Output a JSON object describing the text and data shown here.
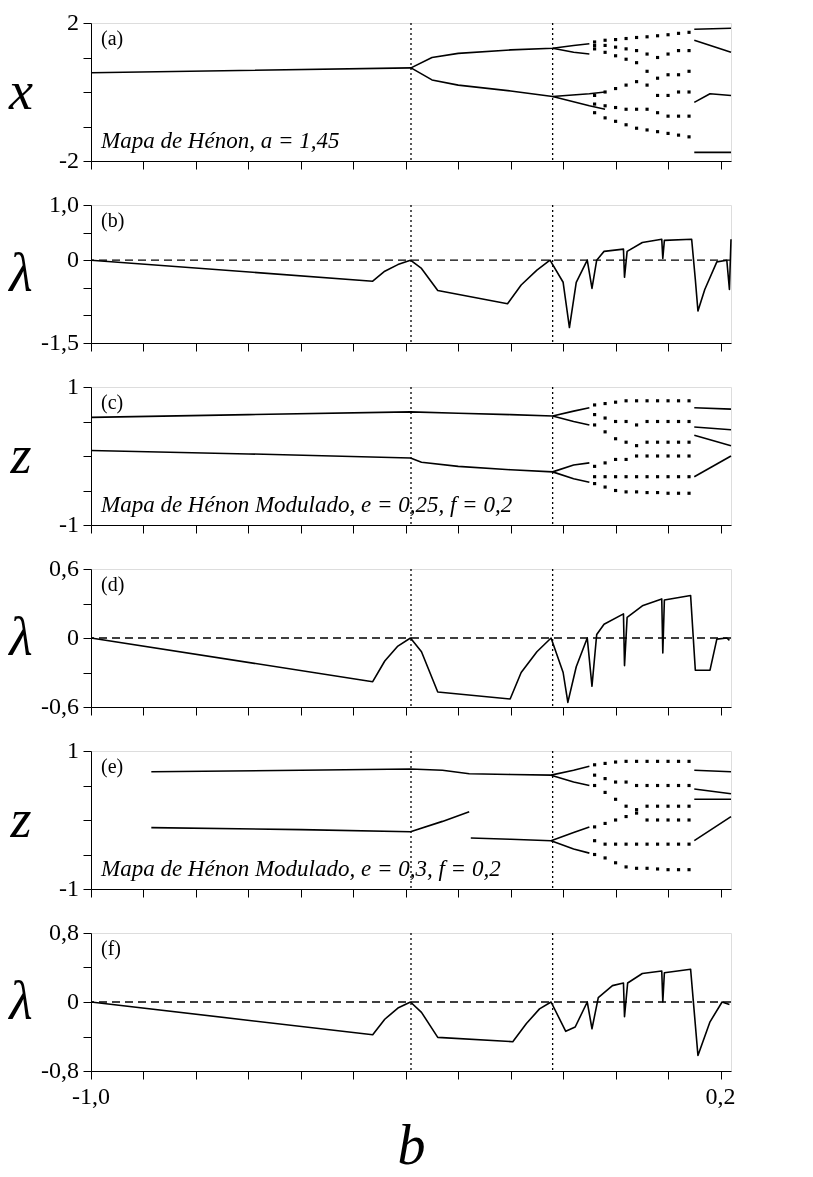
{
  "chart_data": [
    {
      "type": "line",
      "ylabel": "x",
      "xlim": [
        -1.0,
        0.22
      ],
      "ylim": [
        -2,
        2
      ],
      "tick_labels": "y",
      "grid": false,
      "xticks": [
        {
          "value": -1.0,
          "label": null
        },
        {
          "value": -0.9,
          "label": null
        },
        {
          "value": -0.8,
          "label": null
        },
        {
          "value": -0.7,
          "label": null
        },
        {
          "value": -0.6,
          "label": null
        },
        {
          "value": -0.5,
          "label": null
        },
        {
          "value": -0.4,
          "label": null
        },
        {
          "value": -0.3,
          "label": null
        },
        {
          "value": -0.2,
          "label": null
        },
        {
          "value": -0.1,
          "label": null
        },
        {
          "value": 0.0,
          "label": null
        },
        {
          "value": 0.1,
          "label": null
        },
        {
          "value": 0.2,
          "label": null
        }
      ],
      "yticks": [
        -2,
        {
          "value": -1,
          "label": null
        },
        {
          "value": 0,
          "label": null
        },
        {
          "value": 1,
          "label": null
        },
        2
      ],
      "annotations": [
        "(a)",
        "Mapa de Hénon, a = 1,45"
      ],
      "ref_lines": [
        {
          "axis": "x",
          "value": -0.39,
          "line_style": "dotted"
        },
        {
          "axis": "x",
          "value": -0.12,
          "line_style": "dotted"
        }
      ],
      "series": [
        {
          "type": "line",
          "color": "#000000",
          "x": [
            -1.0,
            -0.39,
            -0.35,
            -0.3,
            -0.2,
            -0.12,
            -0.08,
            -0.05
          ],
          "values": [
            0.56,
            0.7,
            1.0,
            1.12,
            1.22,
            1.27,
            1.35,
            1.4
          ]
        },
        {
          "type": "line",
          "color": "#000000",
          "x": [
            -0.12,
            -0.08,
            -0.05
          ],
          "values": [
            1.27,
            1.15,
            1.1
          ]
        },
        {
          "type": "line",
          "color": "#000000",
          "x": [
            -0.39,
            -0.35,
            -0.3,
            -0.2,
            -0.12,
            -0.05,
            -0.02
          ],
          "values": [
            0.7,
            0.35,
            0.2,
            0.03,
            -0.13,
            -0.05,
            0.0
          ]
        },
        {
          "type": "line",
          "color": "#000000",
          "x": [
            -0.12,
            -0.05,
            -0.02
          ],
          "values": [
            -0.13,
            -0.4,
            -0.5
          ]
        },
        {
          "type": "line",
          "color": "#000000",
          "x": [
            0.15,
            0.22
          ],
          "values": [
            1.82,
            1.85
          ]
        },
        {
          "type": "line",
          "color": "#000000",
          "x": [
            0.15,
            0.22
          ],
          "values": [
            1.5,
            1.15
          ]
        },
        {
          "type": "line",
          "color": "#000000",
          "x": [
            0.15,
            0.18,
            0.22
          ],
          "values": [
            -0.3,
            -0.05,
            -0.1
          ]
        },
        {
          "type": "line",
          "color": "#000000",
          "x": [
            0.15,
            0.22
          ],
          "values": [
            -1.75,
            -1.75
          ]
        },
        {
          "type": "scatter",
          "color": "#000000",
          "x": [
            -0.04,
            -0.04,
            -0.04,
            -0.04,
            -0.04,
            -0.04,
            -0.02,
            -0.02,
            -0.02,
            -0.02,
            -0.02,
            -0.02,
            0.0,
            0.0,
            0.0,
            0.0,
            0.0,
            0.0,
            0.02,
            0.02,
            0.02,
            0.02,
            0.02,
            0.02,
            0.04,
            0.04,
            0.04,
            0.04,
            0.04,
            0.04,
            0.06,
            0.06,
            0.06,
            0.06,
            0.06,
            0.06,
            0.08,
            0.08,
            0.08,
            0.08,
            0.08,
            0.08,
            0.1,
            0.1,
            0.1,
            0.1,
            0.1,
            0.1,
            0.12,
            0.12,
            0.12,
            0.12,
            0.12,
            0.12,
            0.14,
            0.14,
            0.14,
            0.14,
            0.14,
            0.14
          ],
          "values": [
            1.45,
            1.35,
            1.25,
            -0.1,
            -0.35,
            -0.6,
            1.5,
            1.35,
            1.15,
            0.0,
            -0.4,
            -0.75,
            1.52,
            1.3,
            1.05,
            0.1,
            -0.45,
            -0.85,
            1.55,
            1.25,
            0.95,
            0.2,
            -0.5,
            -0.95,
            1.58,
            1.2,
            0.85,
            0.3,
            -0.5,
            -1.05,
            1.6,
            1.1,
            0.6,
            0.2,
            -0.5,
            -1.1,
            1.63,
            1.0,
            0.4,
            -0.1,
            -0.6,
            -1.15,
            1.66,
            1.1,
            0.5,
            -0.1,
            -0.7,
            -1.2,
            1.7,
            1.2,
            0.5,
            0.0,
            -0.7,
            -1.25,
            1.73,
            1.2,
            0.6,
            0.0,
            -0.7,
            -1.3
          ]
        }
      ]
    },
    {
      "type": "line",
      "ylabel": "λ",
      "xlim": [
        -1.0,
        0.22
      ],
      "ylim": [
        -1.5,
        1.0
      ],
      "tick_labels": "y",
      "grid": false,
      "xticks": [
        {
          "value": -1.0,
          "label": null
        },
        {
          "value": -0.9,
          "label": null
        },
        {
          "value": -0.8,
          "label": null
        },
        {
          "value": -0.7,
          "label": null
        },
        {
          "value": -0.6,
          "label": null
        },
        {
          "value": -0.5,
          "label": null
        },
        {
          "value": -0.4,
          "label": null
        },
        {
          "value": -0.3,
          "label": null
        },
        {
          "value": -0.2,
          "label": null
        },
        {
          "value": -0.1,
          "label": null
        },
        {
          "value": 0.0,
          "label": null
        },
        {
          "value": 0.1,
          "label": null
        },
        {
          "value": 0.2,
          "label": null
        }
      ],
      "yticks": [
        {
          "value": -1.5,
          "label": "-1,5"
        },
        {
          "value": -1.0,
          "label": null
        },
        {
          "value": -0.5,
          "label": null
        },
        0,
        {
          "value": 0.5,
          "label": null
        },
        {
          "value": 1.0,
          "label": "1,0"
        }
      ],
      "annotations": [
        "(b)"
      ],
      "ref_lines": [
        {
          "axis": "x",
          "value": -0.39,
          "line_style": "dotted"
        },
        {
          "axis": "x",
          "value": -0.12,
          "line_style": "dotted"
        },
        {
          "axis": "y",
          "value": 0,
          "line_style": "dashed"
        }
      ],
      "series": [
        {
          "type": "line",
          "color": "#000000",
          "x": [
            -1.0,
            -0.463,
            -0.44,
            -0.415,
            -0.391,
            -0.37,
            -0.339,
            -0.206,
            -0.18,
            -0.15,
            -0.125,
            -0.1,
            -0.088,
            -0.075,
            -0.054,
            -0.045,
            -0.036,
            -0.022,
            0.015,
            0.017,
            0.022,
            0.051,
            0.088,
            0.09,
            0.093,
            0.145,
            0.152,
            0.157,
            0.17,
            0.193,
            0.212,
            0.217,
            0.22
          ],
          "values": [
            0.0,
            -0.38,
            -0.2,
            -0.08,
            0.0,
            -0.15,
            -0.55,
            -0.79,
            -0.45,
            -0.18,
            0.0,
            -0.4,
            -1.22,
            -0.4,
            0.0,
            -0.51,
            0.0,
            0.16,
            0.2,
            -0.31,
            0.16,
            0.32,
            0.38,
            0.03,
            0.36,
            0.38,
            -0.35,
            -0.92,
            -0.53,
            -0.03,
            0.0,
            -0.53,
            0.38
          ]
        }
      ]
    },
    {
      "type": "line",
      "ylabel": "z",
      "xlim": [
        -1.0,
        0.22
      ],
      "ylim": [
        -1,
        1
      ],
      "tick_labels": "y",
      "grid": false,
      "xticks": [
        {
          "value": -1.0,
          "label": null
        },
        {
          "value": -0.9,
          "label": null
        },
        {
          "value": -0.8,
          "label": null
        },
        {
          "value": -0.7,
          "label": null
        },
        {
          "value": -0.6,
          "label": null
        },
        {
          "value": -0.5,
          "label": null
        },
        {
          "value": -0.4,
          "label": null
        },
        {
          "value": -0.3,
          "label": null
        },
        {
          "value": -0.2,
          "label": null
        },
        {
          "value": -0.1,
          "label": null
        },
        {
          "value": 0.0,
          "label": null
        },
        {
          "value": 0.1,
          "label": null
        },
        {
          "value": 0.2,
          "label": null
        }
      ],
      "yticks": [
        -1,
        {
          "value": -0.5,
          "label": null
        },
        {
          "value": 0,
          "label": null
        },
        {
          "value": 0.5,
          "label": null
        },
        1
      ],
      "annotations": [
        "(c)",
        "Mapa de Hénon Modulado, e = 0,25, f = 0,2"
      ],
      "ref_lines": [
        {
          "axis": "x",
          "value": -0.39,
          "line_style": "dotted"
        },
        {
          "axis": "x",
          "value": -0.12,
          "line_style": "dotted"
        }
      ],
      "series": [
        {
          "type": "line",
          "color": "#000000",
          "x": [
            -1.0,
            -0.7,
            -0.391,
            -0.3,
            -0.2,
            -0.12,
            -0.08,
            -0.05
          ],
          "values": [
            0.56,
            0.6,
            0.64,
            0.62,
            0.6,
            0.58,
            0.65,
            0.7
          ]
        },
        {
          "type": "line",
          "color": "#000000",
          "x": [
            -0.12,
            -0.08,
            -0.05
          ],
          "values": [
            0.58,
            0.5,
            0.45
          ]
        },
        {
          "type": "line",
          "color": "#000000",
          "x": [
            -1.0,
            -0.7,
            -0.391,
            -0.37,
            -0.3,
            -0.2,
            -0.12,
            -0.08,
            -0.05
          ],
          "values": [
            0.08,
            0.03,
            -0.03,
            -0.09,
            -0.15,
            -0.2,
            -0.23,
            -0.13,
            -0.1
          ]
        },
        {
          "type": "line",
          "color": "#000000",
          "x": [
            -0.12,
            -0.08,
            -0.05
          ],
          "values": [
            -0.23,
            -0.33,
            -0.38
          ]
        },
        {
          "type": "line",
          "color": "#000000",
          "x": [
            0.15,
            0.22
          ],
          "values": [
            0.7,
            0.68
          ]
        },
        {
          "type": "line",
          "color": "#000000",
          "x": [
            0.15,
            0.22
          ],
          "values": [
            0.42,
            0.38
          ]
        },
        {
          "type": "line",
          "color": "#000000",
          "x": [
            0.15,
            0.22
          ],
          "values": [
            0.3,
            0.15
          ]
        },
        {
          "type": "line",
          "color": "#000000",
          "x": [
            0.15,
            0.22
          ],
          "values": [
            -0.3,
            0.0
          ]
        },
        {
          "type": "scatter",
          "color": "#000000",
          "x": [
            -0.04,
            -0.04,
            -0.04,
            -0.04,
            -0.04,
            -0.04,
            -0.02,
            -0.02,
            -0.02,
            -0.02,
            -0.02,
            -0.02,
            0.0,
            0.0,
            0.0,
            0.0,
            0.0,
            0.0,
            0.02,
            0.02,
            0.02,
            0.02,
            0.02,
            0.02,
            0.04,
            0.04,
            0.04,
            0.04,
            0.04,
            0.04,
            0.06,
            0.06,
            0.06,
            0.06,
            0.06,
            0.06,
            0.08,
            0.08,
            0.08,
            0.08,
            0.08,
            0.08,
            0.1,
            0.1,
            0.1,
            0.1,
            0.1,
            0.1,
            0.12,
            0.12,
            0.12,
            0.12,
            0.12,
            0.12,
            0.14,
            0.14,
            0.14,
            0.14,
            0.14,
            0.14
          ],
          "values": [
            0.74,
            0.6,
            0.45,
            -0.15,
            -0.3,
            -0.4,
            0.76,
            0.55,
            0.35,
            -0.1,
            -0.3,
            -0.45,
            0.78,
            0.5,
            0.25,
            -0.05,
            -0.3,
            -0.5,
            0.8,
            0.5,
            0.2,
            -0.05,
            -0.3,
            -0.52,
            0.8,
            0.45,
            0.15,
            0.0,
            -0.3,
            -0.52,
            0.8,
            0.5,
            0.2,
            0.0,
            -0.3,
            -0.53,
            0.8,
            0.5,
            0.2,
            0.0,
            -0.3,
            -0.53,
            0.8,
            0.5,
            0.2,
            0.0,
            -0.3,
            -0.54,
            0.8,
            0.5,
            0.2,
            0.0,
            -0.3,
            -0.54,
            0.8,
            0.5,
            0.2,
            0.0,
            -0.3,
            -0.54
          ]
        }
      ]
    },
    {
      "type": "line",
      "ylabel": "λ",
      "xlim": [
        -1.0,
        0.22
      ],
      "ylim": [
        -0.6,
        0.6
      ],
      "tick_labels": "y",
      "grid": false,
      "xticks": [
        {
          "value": -1.0,
          "label": null
        },
        {
          "value": -0.9,
          "label": null
        },
        {
          "value": -0.8,
          "label": null
        },
        {
          "value": -0.7,
          "label": null
        },
        {
          "value": -0.6,
          "label": null
        },
        {
          "value": -0.5,
          "label": null
        },
        {
          "value": -0.4,
          "label": null
        },
        {
          "value": -0.3,
          "label": null
        },
        {
          "value": -0.2,
          "label": null
        },
        {
          "value": -0.1,
          "label": null
        },
        {
          "value": 0.0,
          "label": null
        },
        {
          "value": 0.1,
          "label": null
        },
        {
          "value": 0.2,
          "label": null
        }
      ],
      "yticks": [
        {
          "value": -0.6,
          "label": "-0,6"
        },
        {
          "value": -0.3,
          "label": null
        },
        0,
        {
          "value": 0.3,
          "label": null
        },
        {
          "value": 0.6,
          "label": "0,6"
        }
      ],
      "annotations": [
        "(d)"
      ],
      "ref_lines": [
        {
          "axis": "x",
          "value": -0.39,
          "line_style": "dotted"
        },
        {
          "axis": "x",
          "value": -0.12,
          "line_style": "dotted"
        },
        {
          "axis": "y",
          "value": 0,
          "line_style": "dashed"
        }
      ],
      "series": [
        {
          "type": "line",
          "color": "#000000",
          "x": [
            -1.0,
            -0.463,
            -0.44,
            -0.415,
            -0.391,
            -0.37,
            -0.339,
            -0.201,
            -0.18,
            -0.15,
            -0.123,
            -0.1,
            -0.091,
            -0.075,
            -0.054,
            -0.045,
            -0.036,
            -0.022,
            0.015,
            0.017,
            0.022,
            0.051,
            0.088,
            0.09,
            0.093,
            0.143,
            0.152,
            0.18,
            0.193,
            0.212,
            0.217
          ],
          "values": [
            0.0,
            -0.38,
            -0.2,
            -0.07,
            0.0,
            -0.12,
            -0.47,
            -0.53,
            -0.3,
            -0.12,
            0.0,
            -0.3,
            -0.56,
            -0.25,
            0.0,
            -0.42,
            0.03,
            0.12,
            0.21,
            -0.24,
            0.18,
            0.28,
            0.34,
            -0.13,
            0.33,
            0.37,
            -0.28,
            -0.28,
            -0.01,
            0.0,
            -0.02
          ]
        }
      ]
    },
    {
      "type": "line",
      "ylabel": "z",
      "xlim": [
        -1.0,
        0.22
      ],
      "ylim": [
        -1,
        1
      ],
      "tick_labels": "y",
      "grid": false,
      "xticks": [
        {
          "value": -1.0,
          "label": null
        },
        {
          "value": -0.9,
          "label": null
        },
        {
          "value": -0.8,
          "label": null
        },
        {
          "value": -0.7,
          "label": null
        },
        {
          "value": -0.6,
          "label": null
        },
        {
          "value": -0.5,
          "label": null
        },
        {
          "value": -0.4,
          "label": null
        },
        {
          "value": -0.3,
          "label": null
        },
        {
          "value": -0.2,
          "label": null
        },
        {
          "value": -0.1,
          "label": null
        },
        {
          "value": 0.0,
          "label": null
        },
        {
          "value": 0.1,
          "label": null
        },
        {
          "value": 0.2,
          "label": null
        }
      ],
      "yticks": [
        -1,
        {
          "value": -0.5,
          "label": null
        },
        {
          "value": 0,
          "label": null
        },
        {
          "value": 0.5,
          "label": null
        },
        1
      ],
      "annotations": [
        "(e)",
        "Mapa de Hénon Modulado, e = 0,3, f = 0,2"
      ],
      "ref_lines": [
        {
          "axis": "x",
          "value": -0.39,
          "line_style": "dotted"
        },
        {
          "axis": "x",
          "value": -0.12,
          "line_style": "dotted"
        }
      ],
      "series": [
        {
          "type": "line",
          "color": "#000000",
          "x": [
            -0.885,
            -0.6,
            -0.391,
            -0.33,
            -0.279,
            -0.2,
            -0.123,
            -0.08,
            -0.05
          ],
          "values": [
            0.7,
            0.72,
            0.74,
            0.72,
            0.67,
            0.66,
            0.65,
            0.72,
            0.78
          ]
        },
        {
          "type": "line",
          "color": "#000000",
          "x": [
            -0.123,
            -0.08,
            -0.05
          ],
          "values": [
            0.65,
            0.55,
            0.5
          ]
        },
        {
          "type": "line",
          "color": "#000000",
          "x": [
            -0.885,
            -0.6,
            -0.391,
            -0.33,
            -0.279
          ],
          "values": [
            -0.11,
            -0.14,
            -0.17,
            -0.02,
            0.12
          ]
        },
        {
          "type": "line",
          "color": "#000000",
          "x": [
            -0.276,
            -0.2,
            -0.123,
            -0.08,
            -0.05
          ],
          "values": [
            -0.26,
            -0.28,
            -0.3,
            -0.18,
            -0.1
          ]
        },
        {
          "type": "line",
          "color": "#000000",
          "x": [
            -0.123,
            -0.08,
            -0.05
          ],
          "values": [
            -0.3,
            -0.42,
            -0.48
          ]
        },
        {
          "type": "line",
          "color": "#000000",
          "x": [
            0.15,
            0.22
          ],
          "values": [
            0.72,
            0.7
          ]
        },
        {
          "type": "line",
          "color": "#000000",
          "x": [
            0.15,
            0.22
          ],
          "values": [
            0.45,
            0.38
          ]
        },
        {
          "type": "line",
          "color": "#000000",
          "x": [
            0.15,
            0.22
          ],
          "values": [
            0.3,
            0.3
          ]
        },
        {
          "type": "line",
          "color": "#000000",
          "x": [
            0.15,
            0.22
          ],
          "values": [
            -0.3,
            0.05
          ]
        },
        {
          "type": "scatter",
          "color": "#000000",
          "x": [
            -0.04,
            -0.04,
            -0.04,
            -0.04,
            -0.04,
            -0.04,
            -0.02,
            -0.02,
            -0.02,
            -0.02,
            -0.02,
            -0.02,
            0.0,
            0.0,
            0.0,
            0.0,
            0.0,
            0.0,
            0.02,
            0.02,
            0.02,
            0.02,
            0.02,
            0.02,
            0.04,
            0.04,
            0.04,
            0.04,
            0.04,
            0.04,
            0.06,
            0.06,
            0.06,
            0.06,
            0.06,
            0.06,
            0.08,
            0.08,
            0.08,
            0.08,
            0.08,
            0.08,
            0.1,
            0.1,
            0.1,
            0.1,
            0.1,
            0.1,
            0.12,
            0.12,
            0.12,
            0.12,
            0.12,
            0.12,
            0.14,
            0.14,
            0.14,
            0.14,
            0.14,
            0.14
          ],
          "values": [
            0.8,
            0.65,
            0.5,
            -0.1,
            -0.3,
            -0.5,
            0.82,
            0.6,
            0.4,
            -0.05,
            -0.35,
            -0.55,
            0.84,
            0.55,
            0.3,
            0.0,
            -0.35,
            -0.62,
            0.85,
            0.55,
            0.2,
            0.05,
            -0.35,
            -0.68,
            0.85,
            0.5,
            0.15,
            0.1,
            -0.35,
            -0.7,
            0.85,
            0.5,
            0.2,
            0.0,
            -0.35,
            -0.7,
            0.85,
            0.5,
            0.2,
            0.0,
            -0.35,
            -0.71,
            0.85,
            0.5,
            0.2,
            0.0,
            -0.35,
            -0.72,
            0.85,
            0.5,
            0.2,
            0.0,
            -0.35,
            -0.72,
            0.85,
            0.5,
            0.2,
            0.0,
            -0.35,
            -0.72
          ]
        }
      ]
    },
    {
      "type": "line",
      "ylabel": "λ",
      "xlabel": "b",
      "xlim": [
        -1.0,
        0.22
      ],
      "ylim": [
        -0.8,
        0.8
      ],
      "grid": false,
      "xticks": [
        {
          "value": -1.0,
          "label": "-1,0"
        },
        {
          "value": -0.9,
          "label": null
        },
        {
          "value": -0.8,
          "label": null
        },
        {
          "value": -0.7,
          "label": null
        },
        {
          "value": -0.6,
          "label": null
        },
        {
          "value": -0.5,
          "label": null
        },
        {
          "value": -0.4,
          "label": null
        },
        {
          "value": -0.3,
          "label": null
        },
        {
          "value": -0.2,
          "label": null
        },
        {
          "value": -0.1,
          "label": null
        },
        {
          "value": 0.0,
          "label": null
        },
        {
          "value": 0.1,
          "label": null
        },
        {
          "value": 0.2,
          "label": "0,2"
        }
      ],
      "yticks": [
        {
          "value": -0.8,
          "label": "-0,8"
        },
        {
          "value": -0.4,
          "label": null
        },
        0,
        {
          "value": 0.4,
          "label": null
        },
        {
          "value": 0.8,
          "label": "0,8"
        }
      ],
      "annotations": [
        "(f)"
      ],
      "ref_lines": [
        {
          "axis": "x",
          "value": -0.39,
          "line_style": "dotted"
        },
        {
          "axis": "x",
          "value": -0.12,
          "line_style": "dotted"
        },
        {
          "axis": "y",
          "value": 0,
          "line_style": "dashed"
        }
      ],
      "series": [
        {
          "type": "line",
          "color": "#000000",
          "x": [
            -1.0,
            -0.463,
            -0.44,
            -0.415,
            -0.391,
            -0.37,
            -0.339,
            -0.196,
            -0.17,
            -0.145,
            -0.123,
            -0.095,
            -0.077,
            -0.054,
            -0.045,
            -0.033,
            -0.006,
            0.015,
            0.017,
            0.023,
            0.051,
            0.088,
            0.09,
            0.093,
            0.143,
            0.157,
            0.18,
            0.203,
            0.217
          ],
          "values": [
            0.0,
            -0.38,
            -0.2,
            -0.07,
            0.0,
            -0.12,
            -0.41,
            -0.46,
            -0.25,
            -0.08,
            0.0,
            -0.34,
            -0.29,
            0.0,
            -0.31,
            0.05,
            0.19,
            0.22,
            -0.17,
            0.22,
            0.33,
            0.36,
            0.0,
            0.34,
            0.38,
            -0.62,
            -0.23,
            0.0,
            -0.03
          ]
        }
      ]
    }
  ]
}
